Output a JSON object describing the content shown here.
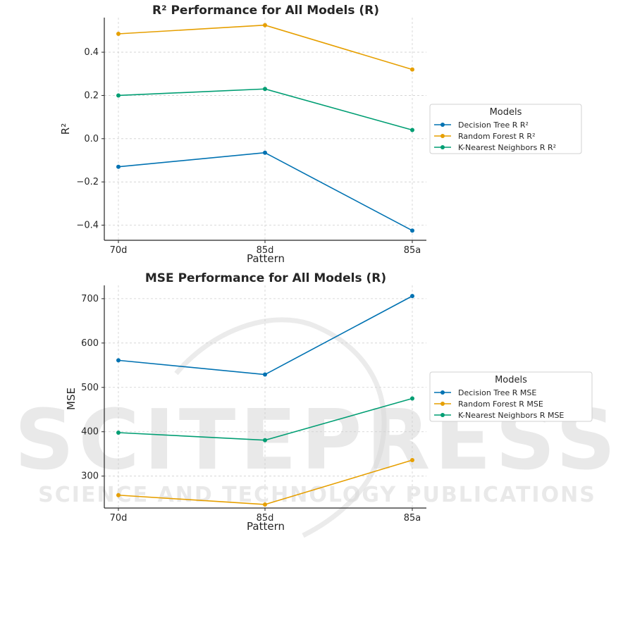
{
  "watermark": {
    "main_text": "SCITEPRESS",
    "sub_text": "SCIENCE AND TECHNOLOGY PUBLICATIONS"
  },
  "colors": {
    "decision_tree": "#0072b2",
    "random_forest": "#e69f00",
    "knn": "#009e73",
    "grid": "#cfcfcf",
    "axis": "#262626"
  },
  "chart_data": [
    {
      "type": "line",
      "title": "R² Performance for All Models (R)",
      "xlabel": "Pattern",
      "ylabel": "R²",
      "categories": [
        "70d",
        "85d",
        "85a"
      ],
      "yticks": [
        -0.4,
        -0.2,
        0.0,
        0.2,
        0.4
      ],
      "ytick_labels": [
        "−0.4",
        "−0.2",
        "0.0",
        "0.2",
        "0.4"
      ],
      "ylim": [
        -0.47,
        0.56
      ],
      "grid": true,
      "legend": {
        "title": "Models",
        "placement": "outside-right"
      },
      "series": [
        {
          "name": "Decision Tree R R²",
          "color_key": "decision_tree",
          "values": [
            -0.13,
            -0.065,
            -0.425
          ]
        },
        {
          "name": "Random Forest R R²",
          "color_key": "random_forest",
          "values": [
            0.485,
            0.525,
            0.32
          ]
        },
        {
          "name": "K-Nearest Neighbors R R²",
          "color_key": "knn",
          "values": [
            0.2,
            0.23,
            0.04
          ]
        }
      ]
    },
    {
      "type": "line",
      "title": "MSE Performance for All Models (R)",
      "xlabel": "Pattern",
      "ylabel": "MSE",
      "categories": [
        "70d",
        "85d",
        "85a"
      ],
      "yticks": [
        300,
        400,
        500,
        600,
        700
      ],
      "ytick_labels": [
        "300",
        "400",
        "500",
        "600",
        "700"
      ],
      "ylim": [
        228,
        730
      ],
      "grid": true,
      "legend": {
        "title": "Models",
        "placement": "outside-right"
      },
      "series": [
        {
          "name": "Decision Tree R MSE",
          "color_key": "decision_tree",
          "values": [
            561,
            529,
            706
          ]
        },
        {
          "name": "Random Forest R MSE",
          "color_key": "random_forest",
          "values": [
            257,
            236,
            336
          ]
        },
        {
          "name": "K-Nearest Neighbors R MSE",
          "color_key": "knn",
          "values": [
            398,
            381,
            475
          ]
        }
      ]
    }
  ]
}
